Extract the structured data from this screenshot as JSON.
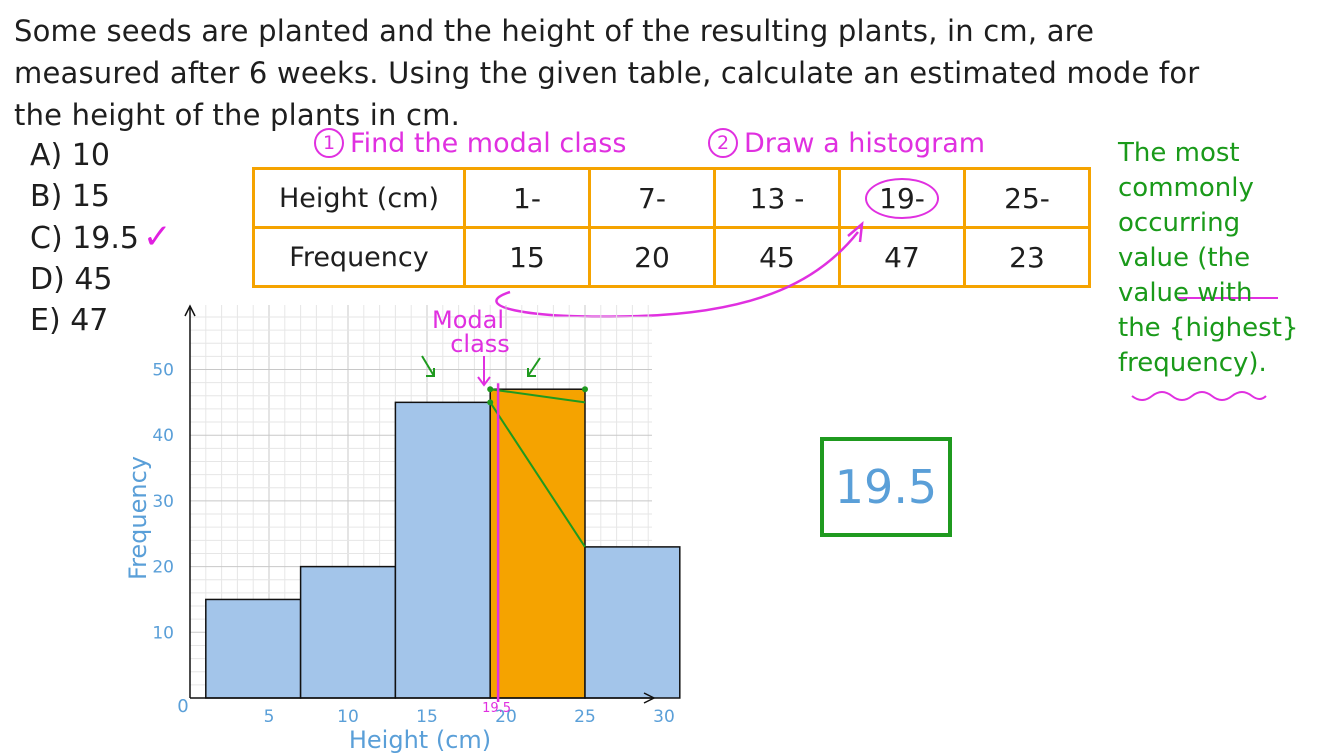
{
  "question": {
    "line1": "Some seeds are planted and the height of the resulting plants, in cm, are",
    "line2": "measured after 6 weeks. Using the given table, calculate an estimated mode for",
    "line3": "the height of the plants in cm."
  },
  "options": [
    {
      "label": "A) 10"
    },
    {
      "label": "B) 15"
    },
    {
      "label": "C) 19.5",
      "tick": "✓"
    },
    {
      "label": "D) 45"
    },
    {
      "label": "E) 47"
    }
  ],
  "steps": {
    "step1_num": "1",
    "step1_text": "Find the modal class",
    "step2_num": "2",
    "step2_text": "Draw a histogram"
  },
  "table": {
    "row1_header": "Height (cm)",
    "classes": [
      "1-",
      "7-",
      "13 -",
      "19-",
      "25-"
    ],
    "row2_header": "Frequency",
    "frequencies": [
      "15",
      "20",
      "45",
      "47",
      "23"
    ]
  },
  "note": {
    "lines": [
      "The most",
      "commonly",
      "occurring",
      "value (the",
      "value with",
      "the {highest}",
      "frequency)."
    ]
  },
  "answer": "19.5",
  "colors": {
    "bar": "#a3c5ea",
    "modal_bar": "#f5a300",
    "annotation": "#e030e0",
    "construction": "#1f9a1f",
    "axis_text": "#5a9fd8",
    "table_border": "#f5a300"
  },
  "chart_data": {
    "type": "bar",
    "xlabel": "Height (cm)",
    "ylabel": "Frequency",
    "xlim": [
      0,
      34
    ],
    "ylim": [
      0,
      55
    ],
    "xticks": [
      5,
      10,
      15,
      20,
      25,
      30
    ],
    "yticks": [
      10,
      20,
      30,
      40,
      50
    ],
    "origin_label": "0",
    "grid": true,
    "bars": [
      {
        "x0": 1,
        "x1": 7,
        "value": 15,
        "modal": false
      },
      {
        "x0": 7,
        "x1": 13,
        "value": 20,
        "modal": false
      },
      {
        "x0": 13,
        "x1": 19,
        "value": 45,
        "modal": false
      },
      {
        "x0": 19,
        "x1": 25,
        "value": 47,
        "modal": true
      },
      {
        "x0": 25,
        "x1": 31,
        "value": 23,
        "modal": false
      }
    ],
    "modal_label_line1": "Modal",
    "modal_label_line2": "class",
    "estimated_mode": 19.5,
    "estimated_mode_label": "19.5"
  }
}
